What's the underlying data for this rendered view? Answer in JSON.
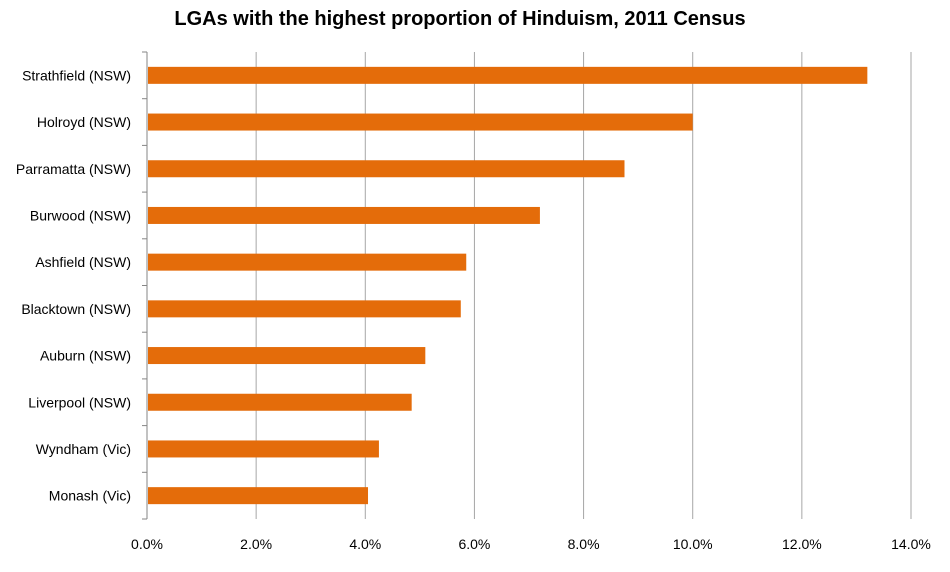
{
  "chart_data": {
    "type": "bar",
    "orientation": "horizontal",
    "title": "LGAs with the highest proportion of Hinduism, 2011 Census",
    "xlabel": "",
    "ylabel": "",
    "categories": [
      "Strathfield (NSW)",
      "Holroyd (NSW)",
      "Parramatta (NSW)",
      "Burwood (NSW)",
      "Ashfield (NSW)",
      "Blacktown (NSW)",
      "Auburn (NSW)",
      "Liverpool (NSW)",
      "Wyndham (Vic)",
      "Monash (Vic)"
    ],
    "values": [
      13.2,
      10.0,
      8.75,
      7.2,
      5.85,
      5.75,
      5.1,
      4.85,
      4.25,
      4.05
    ],
    "value_unit": "percent",
    "xlim": [
      0,
      14
    ],
    "xticks": [
      0,
      2,
      4,
      6,
      8,
      10,
      12,
      14
    ],
    "xtick_labels": [
      "0.0%",
      "2.0%",
      "4.0%",
      "6.0%",
      "8.0%",
      "10.0%",
      "12.0%",
      "14.0%"
    ],
    "grid": "vertical",
    "legend": "none",
    "colors": {
      "bar": "#E46C0A",
      "grid": "#A6A6A6",
      "axis": "#868686"
    }
  }
}
